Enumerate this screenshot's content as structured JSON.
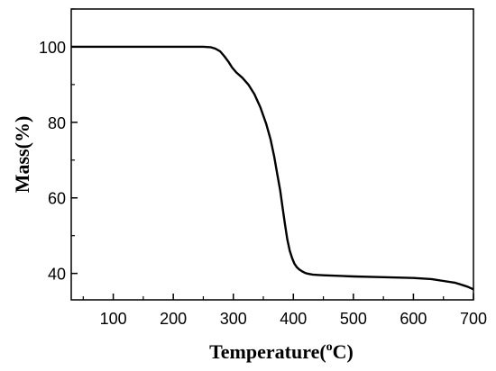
{
  "chart_data": {
    "type": "line",
    "title": "",
    "xlabel": "Temperature(",
    "xlabel_sup": "o",
    "xlabel_tail": "C)",
    "ylabel": "Mass(%)",
    "xlim": [
      30,
      700
    ],
    "ylim": [
      33,
      110
    ],
    "xticks": [
      100,
      200,
      300,
      400,
      500,
      600,
      700
    ],
    "yticks": [
      40,
      60,
      80,
      100
    ],
    "grid": false,
    "legend": "none",
    "line_color": "#000000",
    "series": [
      {
        "x": [
          30,
          100,
          150,
          200,
          230,
          250,
          262,
          270,
          278,
          285,
          292,
          298,
          305,
          315,
          325,
          335,
          345,
          355,
          362,
          368,
          373,
          378,
          382,
          386,
          390,
          394,
          398,
          402,
          406,
          410,
          415,
          420,
          425,
          432,
          440,
          450,
          470,
          500,
          550,
          600,
          630,
          650,
          670,
          690,
          700
        ],
        "y": [
          100,
          100,
          100,
          100,
          100,
          100,
          99.9,
          99.5,
          98.8,
          97.5,
          96,
          94.5,
          93.2,
          91.8,
          90,
          87.5,
          84,
          79.5,
          75.5,
          71,
          66.5,
          62,
          57.5,
          53,
          49,
          46,
          44,
          42.5,
          41.6,
          41,
          40.5,
          40.1,
          39.9,
          39.7,
          39.6,
          39.5,
          39.4,
          39.2,
          39.0,
          38.8,
          38.5,
          38.0,
          37.5,
          36.5,
          35.8
        ]
      }
    ]
  }
}
